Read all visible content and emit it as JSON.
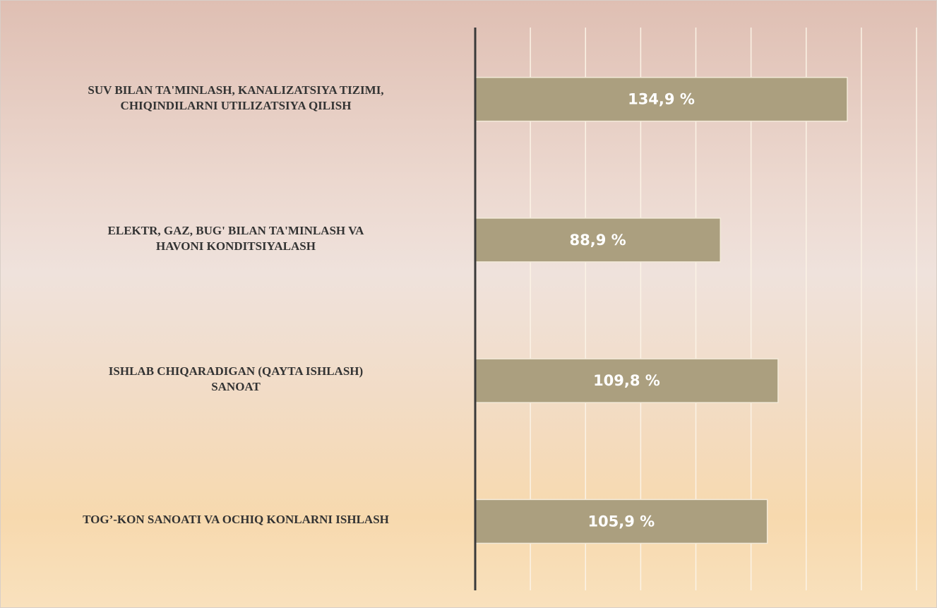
{
  "chart_data": {
    "type": "bar",
    "orientation": "horizontal",
    "categories": [
      "SUV  BILAN  TA'MINLASH, KANALIZATSIYA  TIZIMI,\nCHIQINDILARNI UTILIZATSIYA  QILISH",
      "ELEKTR, GAZ, BUG' BILAN TA'MINLASH  VA\nHAVONI  KONDITSIYALASH",
      "ISHLAB  CHIQARADIGAN  (QAYTA  ISHLASH)\nSANOAT",
      "TOG’-KON SANOATI VA OCHIQ KONLARNI ISHLASH"
    ],
    "values": [
      134.9,
      88.9,
      109.8,
      105.9
    ],
    "value_labels": [
      "134,9 %",
      "88,9 %",
      "109,8 %",
      "105,9 %"
    ],
    "color": "#ab9f7f",
    "xlim": [
      0,
      160
    ],
    "xticks": [
      20,
      40,
      60,
      80,
      100,
      120,
      140,
      160
    ],
    "grid": true
  }
}
